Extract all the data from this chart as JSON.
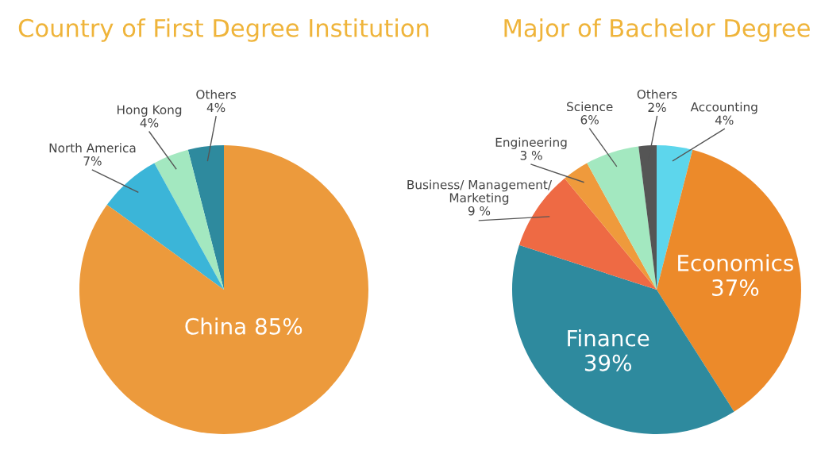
{
  "chart_data": [
    {
      "type": "pie",
      "title": "Country of First Degree Institution",
      "categories": [
        "Others",
        "Hong Kong",
        "North America",
        "China"
      ],
      "values": [
        4,
        4,
        7,
        85
      ],
      "value_labels": [
        "4%",
        "4%",
        "7%",
        "85%"
      ],
      "colors": [
        "#2e8a9e",
        "#a3e8c0",
        "#3bb5d8",
        "#ec9a3c"
      ],
      "legend": false
    },
    {
      "type": "pie",
      "title": "Major of Bachelor Degree",
      "categories": [
        "Accounting",
        "Economics",
        "Finance",
        "Business/ Management/ Marketing",
        "Engineering",
        "Science",
        "Others"
      ],
      "values": [
        4,
        37,
        39,
        9,
        3,
        6,
        2
      ],
      "value_labels": [
        "4%",
        "37%",
        "39%",
        "9 %",
        "3 %",
        "6%",
        "2%"
      ],
      "colors": [
        "#5dd6ec",
        "#ec8a2a",
        "#2e8a9e",
        "#ee6a44",
        "#ef9a3c",
        "#a3e8c0",
        "#555555"
      ],
      "legend": false
    }
  ]
}
